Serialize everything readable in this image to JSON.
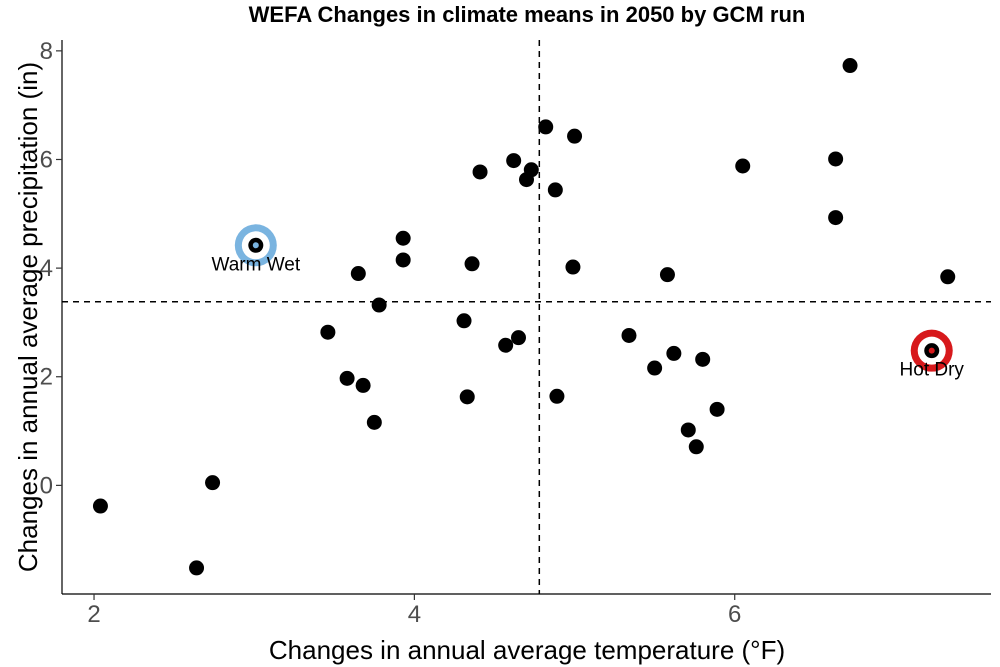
{
  "chart_data": {
    "type": "scatter",
    "title": "WEFA Changes in climate means in 2050 by GCM run",
    "xlabel": "Changes in annual average temperature (°F)",
    "ylabel": "Changes in annual average precipitation (in)",
    "xlim": [
      1.8,
      7.6
    ],
    "ylim": [
      -2,
      8.2
    ],
    "xticks": [
      2,
      4,
      6
    ],
    "yticks": [
      0,
      2,
      4,
      6,
      8
    ],
    "grid": false,
    "reference_lines": {
      "x": 4.78,
      "y": 3.38
    },
    "point_color": "#000000",
    "points": [
      {
        "x": 2.04,
        "y": -0.38
      },
      {
        "x": 2.64,
        "y": -1.52
      },
      {
        "x": 2.74,
        "y": 0.05
      },
      {
        "x": 3.01,
        "y": 4.42
      },
      {
        "x": 3.46,
        "y": 2.82
      },
      {
        "x": 3.58,
        "y": 1.97
      },
      {
        "x": 3.65,
        "y": 3.9
      },
      {
        "x": 3.68,
        "y": 1.84
      },
      {
        "x": 3.75,
        "y": 1.16
      },
      {
        "x": 3.78,
        "y": 3.32
      },
      {
        "x": 3.93,
        "y": 4.55
      },
      {
        "x": 3.93,
        "y": 4.15
      },
      {
        "x": 4.31,
        "y": 3.03
      },
      {
        "x": 4.33,
        "y": 1.63
      },
      {
        "x": 4.36,
        "y": 4.08
      },
      {
        "x": 4.41,
        "y": 5.77
      },
      {
        "x": 4.57,
        "y": 2.58
      },
      {
        "x": 4.62,
        "y": 5.98
      },
      {
        "x": 4.65,
        "y": 2.72
      },
      {
        "x": 4.7,
        "y": 5.63
      },
      {
        "x": 4.73,
        "y": 5.81
      },
      {
        "x": 4.82,
        "y": 6.6
      },
      {
        "x": 4.88,
        "y": 5.44
      },
      {
        "x": 4.89,
        "y": 1.64
      },
      {
        "x": 4.99,
        "y": 4.02
      },
      {
        "x": 5.0,
        "y": 6.43
      },
      {
        "x": 5.34,
        "y": 2.76
      },
      {
        "x": 5.5,
        "y": 2.16
      },
      {
        "x": 5.58,
        "y": 3.88
      },
      {
        "x": 5.62,
        "y": 2.43
      },
      {
        "x": 5.71,
        "y": 1.02
      },
      {
        "x": 5.76,
        "y": 0.71
      },
      {
        "x": 5.8,
        "y": 2.32
      },
      {
        "x": 5.89,
        "y": 1.4
      },
      {
        "x": 6.05,
        "y": 5.88
      },
      {
        "x": 6.63,
        "y": 6.01
      },
      {
        "x": 6.63,
        "y": 4.93
      },
      {
        "x": 6.72,
        "y": 7.73
      },
      {
        "x": 7.23,
        "y": 2.48
      },
      {
        "x": 7.33,
        "y": 3.84
      }
    ],
    "highlights": [
      {
        "label": "Warm Wet",
        "x": 3.01,
        "y": 4.42,
        "ring_color": "#7ab4e0",
        "inner_color": "#ffffff",
        "dot_color": "#000000"
      },
      {
        "label": "Hot Dry",
        "x": 7.23,
        "y": 2.48,
        "ring_color": "#d7191c",
        "inner_color": "#ffffff",
        "dot_color": "#000000"
      }
    ]
  }
}
